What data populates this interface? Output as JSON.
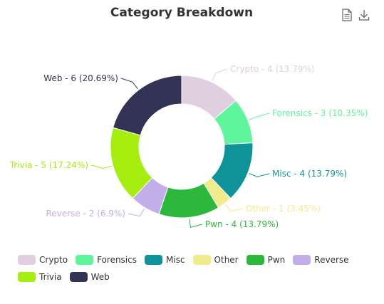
{
  "title": "Category Breakdown",
  "toolbar": {
    "icons": [
      "document-icon",
      "download-icon"
    ]
  },
  "chart_data": {
    "type": "pie",
    "variant": "donut",
    "title": "Category Breakdown",
    "slices": [
      {
        "name": "Crypto",
        "value": 4,
        "label": "Crypto - 4 (13.79%)",
        "color": "#e0cfe0"
      },
      {
        "name": "Forensics",
        "value": 3,
        "label": "Forensics - 3 (10.35%)",
        "color": "#5ef59c"
      },
      {
        "name": "Misc",
        "value": 4,
        "label": "Misc - 4 (13.79%)",
        "color": "#0e9398"
      },
      {
        "name": "Other",
        "value": 1,
        "label": "Other - 1 (3.45%)",
        "color": "#f0ec8c"
      },
      {
        "name": "Pwn",
        "value": 4,
        "label": "Pwn - 4 (13.79%)",
        "color": "#2bb83c"
      },
      {
        "name": "Reverse",
        "value": 2,
        "label": "Reverse - 2 (6.9%)",
        "color": "#c3aeea"
      },
      {
        "name": "Trivia",
        "value": 5,
        "label": "Trivia - 5 (17.24%)",
        "color": "#a5ee10"
      },
      {
        "name": "Web",
        "value": 6,
        "label": "Web - 6 (20.69%)",
        "color": "#333355"
      }
    ],
    "legend_position": "bottom-left"
  }
}
